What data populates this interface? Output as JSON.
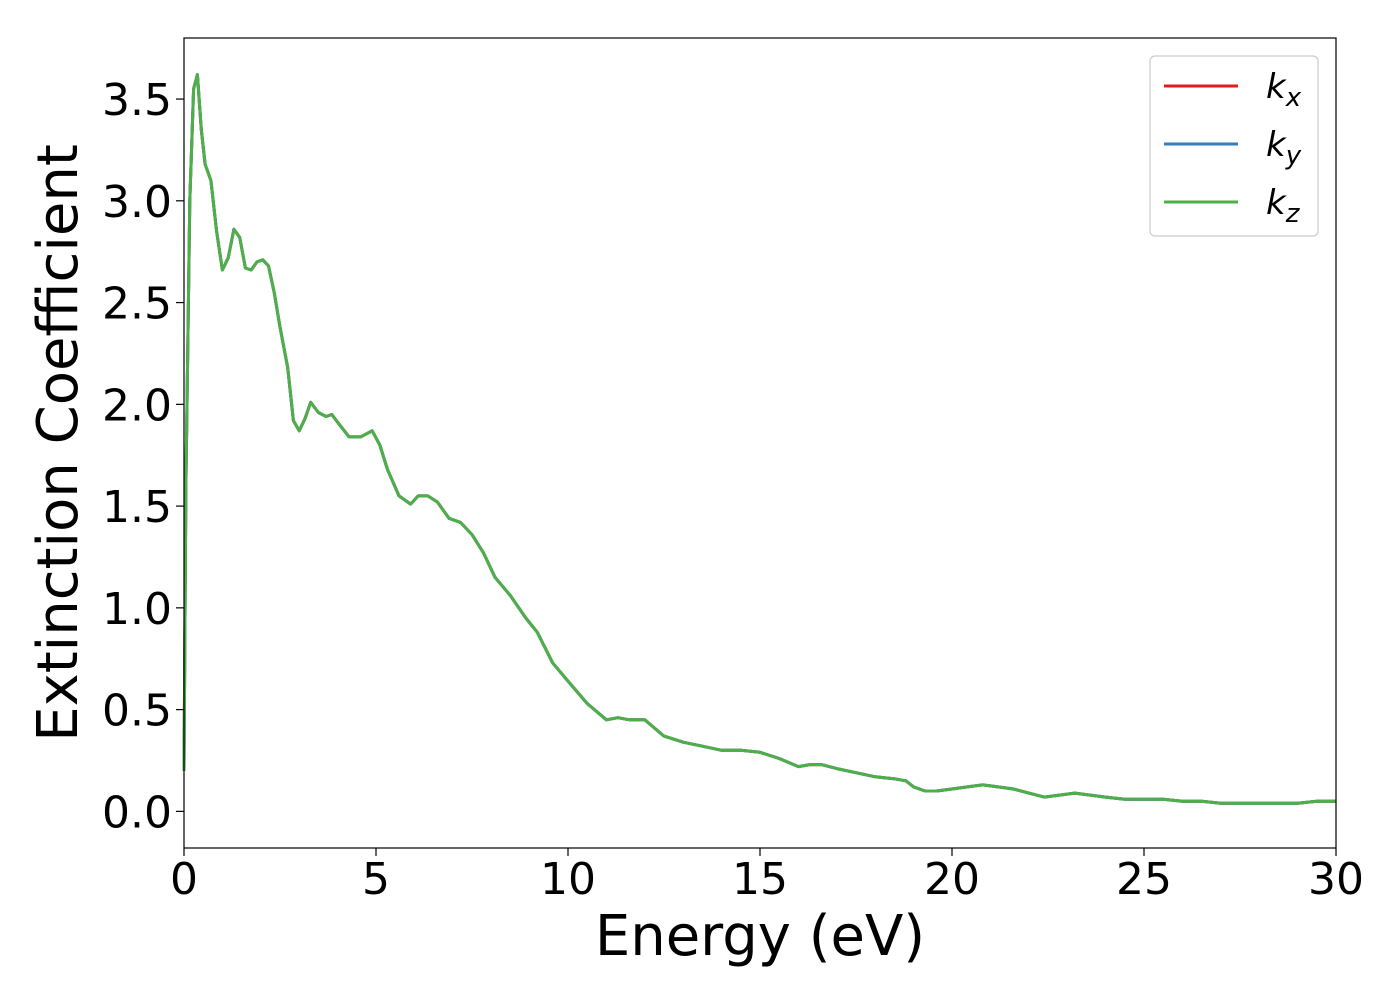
{
  "chart_data": {
    "type": "line",
    "xlabel": "Energy (eV)",
    "ylabel": "Extinction Coefficient",
    "xlim": [
      0,
      30
    ],
    "ylim": [
      -0.18,
      3.8
    ],
    "xticks": [
      0,
      5,
      10,
      15,
      20,
      25,
      30
    ],
    "yticks": [
      0.0,
      0.5,
      1.0,
      1.5,
      2.0,
      2.5,
      3.0,
      3.5
    ],
    "grid": false,
    "legend_position": "top-right",
    "series": [
      {
        "name": "k_x",
        "legend_base": "k",
        "legend_sub": "x",
        "color": "#e41a1c",
        "x": [
          0,
          0.05,
          0.15,
          0.25,
          0.35,
          0.45,
          0.55,
          0.7,
          0.85,
          1.0,
          1.15,
          1.3,
          1.45,
          1.6,
          1.75,
          1.9,
          2.05,
          2.2,
          2.35,
          2.5,
          2.7,
          2.85,
          3.0,
          3.15,
          3.3,
          3.5,
          3.7,
          3.85,
          4.05,
          4.3,
          4.6,
          4.9,
          5.1,
          5.3,
          5.6,
          5.9,
          6.1,
          6.35,
          6.6,
          6.9,
          7.2,
          7.5,
          7.8,
          8.1,
          8.5,
          8.9,
          9.2,
          9.6,
          10.0,
          10.5,
          11.0,
          11.3,
          11.6,
          12.0,
          12.5,
          13.0,
          13.5,
          14.0,
          14.5,
          15.0,
          15.5,
          16.0,
          16.3,
          16.6,
          17.0,
          17.5,
          18.0,
          18.5,
          18.8,
          19.0,
          19.3,
          19.6,
          20.0,
          20.4,
          20.8,
          21.2,
          21.6,
          22.0,
          22.4,
          22.8,
          23.2,
          23.6,
          24.0,
          24.5,
          25.0,
          25.5,
          26.0,
          26.5,
          27.0,
          27.5,
          28.0,
          28.5,
          29.0,
          29.5,
          30.0
        ],
        "y": [
          0.2,
          1.6,
          3.0,
          3.55,
          3.62,
          3.35,
          3.18,
          3.1,
          2.85,
          2.66,
          2.72,
          2.86,
          2.82,
          2.67,
          2.66,
          2.7,
          2.71,
          2.68,
          2.55,
          2.38,
          2.18,
          1.92,
          1.87,
          1.93,
          2.01,
          1.96,
          1.94,
          1.95,
          1.9,
          1.84,
          1.84,
          1.87,
          1.8,
          1.68,
          1.55,
          1.51,
          1.55,
          1.55,
          1.52,
          1.44,
          1.42,
          1.36,
          1.27,
          1.15,
          1.06,
          0.95,
          0.88,
          0.73,
          0.64,
          0.53,
          0.45,
          0.46,
          0.45,
          0.45,
          0.37,
          0.34,
          0.32,
          0.3,
          0.3,
          0.29,
          0.26,
          0.22,
          0.23,
          0.23,
          0.21,
          0.19,
          0.17,
          0.16,
          0.15,
          0.12,
          0.1,
          0.1,
          0.11,
          0.12,
          0.13,
          0.12,
          0.11,
          0.09,
          0.07,
          0.08,
          0.09,
          0.08,
          0.07,
          0.06,
          0.06,
          0.06,
          0.05,
          0.05,
          0.04,
          0.04,
          0.04,
          0.04,
          0.04,
          0.05,
          0.05
        ]
      },
      {
        "name": "k_y",
        "legend_base": "k",
        "legend_sub": "y",
        "color": "#377eb8",
        "x": [
          0,
          0.05,
          0.15,
          0.25,
          0.35,
          0.45,
          0.55,
          0.7,
          0.85,
          1.0,
          1.15,
          1.3,
          1.45,
          1.6,
          1.75,
          1.9,
          2.05,
          2.2,
          2.35,
          2.5,
          2.7,
          2.85,
          3.0,
          3.15,
          3.3,
          3.5,
          3.7,
          3.85,
          4.05,
          4.3,
          4.6,
          4.9,
          5.1,
          5.3,
          5.6,
          5.9,
          6.1,
          6.35,
          6.6,
          6.9,
          7.2,
          7.5,
          7.8,
          8.1,
          8.5,
          8.9,
          9.2,
          9.6,
          10.0,
          10.5,
          11.0,
          11.3,
          11.6,
          12.0,
          12.5,
          13.0,
          13.5,
          14.0,
          14.5,
          15.0,
          15.5,
          16.0,
          16.3,
          16.6,
          17.0,
          17.5,
          18.0,
          18.5,
          18.8,
          19.0,
          19.3,
          19.6,
          20.0,
          20.4,
          20.8,
          21.2,
          21.6,
          22.0,
          22.4,
          22.8,
          23.2,
          23.6,
          24.0,
          24.5,
          25.0,
          25.5,
          26.0,
          26.5,
          27.0,
          27.5,
          28.0,
          28.5,
          29.0,
          29.5,
          30.0
        ],
        "y": [
          0.2,
          1.6,
          3.0,
          3.55,
          3.62,
          3.35,
          3.18,
          3.1,
          2.85,
          2.66,
          2.72,
          2.86,
          2.82,
          2.67,
          2.66,
          2.7,
          2.71,
          2.68,
          2.55,
          2.38,
          2.18,
          1.92,
          1.87,
          1.93,
          2.01,
          1.96,
          1.94,
          1.95,
          1.9,
          1.84,
          1.84,
          1.87,
          1.8,
          1.68,
          1.55,
          1.51,
          1.55,
          1.55,
          1.52,
          1.44,
          1.42,
          1.36,
          1.27,
          1.15,
          1.06,
          0.95,
          0.88,
          0.73,
          0.64,
          0.53,
          0.45,
          0.46,
          0.45,
          0.45,
          0.37,
          0.34,
          0.32,
          0.3,
          0.3,
          0.29,
          0.26,
          0.22,
          0.23,
          0.23,
          0.21,
          0.19,
          0.17,
          0.16,
          0.15,
          0.12,
          0.1,
          0.1,
          0.11,
          0.12,
          0.13,
          0.12,
          0.11,
          0.09,
          0.07,
          0.08,
          0.09,
          0.08,
          0.07,
          0.06,
          0.06,
          0.06,
          0.05,
          0.05,
          0.04,
          0.04,
          0.04,
          0.04,
          0.04,
          0.05,
          0.05
        ]
      },
      {
        "name": "k_z",
        "legend_base": "k",
        "legend_sub": "z",
        "color": "#4daf4a",
        "x": [
          0,
          0.05,
          0.15,
          0.25,
          0.35,
          0.45,
          0.55,
          0.7,
          0.85,
          1.0,
          1.15,
          1.3,
          1.45,
          1.6,
          1.75,
          1.9,
          2.05,
          2.2,
          2.35,
          2.5,
          2.7,
          2.85,
          3.0,
          3.15,
          3.3,
          3.5,
          3.7,
          3.85,
          4.05,
          4.3,
          4.6,
          4.9,
          5.1,
          5.3,
          5.6,
          5.9,
          6.1,
          6.35,
          6.6,
          6.9,
          7.2,
          7.5,
          7.8,
          8.1,
          8.5,
          8.9,
          9.2,
          9.6,
          10.0,
          10.5,
          11.0,
          11.3,
          11.6,
          12.0,
          12.5,
          13.0,
          13.5,
          14.0,
          14.5,
          15.0,
          15.5,
          16.0,
          16.3,
          16.6,
          17.0,
          17.5,
          18.0,
          18.5,
          18.8,
          19.0,
          19.3,
          19.6,
          20.0,
          20.4,
          20.8,
          21.2,
          21.6,
          22.0,
          22.4,
          22.8,
          23.2,
          23.6,
          24.0,
          24.5,
          25.0,
          25.5,
          26.0,
          26.5,
          27.0,
          27.5,
          28.0,
          28.5,
          29.0,
          29.5,
          30.0
        ],
        "y": [
          0.2,
          1.6,
          3.0,
          3.55,
          3.62,
          3.35,
          3.18,
          3.1,
          2.85,
          2.66,
          2.72,
          2.86,
          2.82,
          2.67,
          2.66,
          2.7,
          2.71,
          2.68,
          2.55,
          2.38,
          2.18,
          1.92,
          1.87,
          1.93,
          2.01,
          1.96,
          1.94,
          1.95,
          1.9,
          1.84,
          1.84,
          1.87,
          1.8,
          1.68,
          1.55,
          1.51,
          1.55,
          1.55,
          1.52,
          1.44,
          1.42,
          1.36,
          1.27,
          1.15,
          1.06,
          0.95,
          0.88,
          0.73,
          0.64,
          0.53,
          0.45,
          0.46,
          0.45,
          0.45,
          0.37,
          0.34,
          0.32,
          0.3,
          0.3,
          0.29,
          0.26,
          0.22,
          0.23,
          0.23,
          0.21,
          0.19,
          0.17,
          0.16,
          0.15,
          0.12,
          0.1,
          0.1,
          0.11,
          0.12,
          0.13,
          0.12,
          0.11,
          0.09,
          0.07,
          0.08,
          0.09,
          0.08,
          0.07,
          0.06,
          0.06,
          0.06,
          0.05,
          0.05,
          0.04,
          0.04,
          0.04,
          0.04,
          0.04,
          0.05,
          0.05
        ]
      }
    ]
  }
}
